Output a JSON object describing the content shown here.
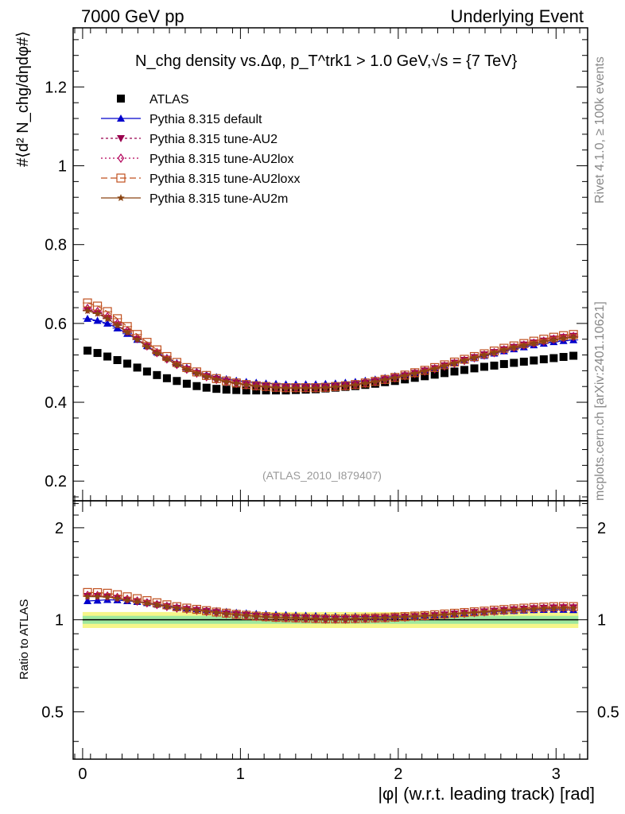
{
  "header": {
    "left": "7000 GeV pp",
    "right": "Underlying Event"
  },
  "side_labels": {
    "top": "Rivet 4.1.0, ≥ 100k events",
    "bottom": "mcplots.cern.ch [arXiv:2401.10621]"
  },
  "analysis_ref": "(ATLAS_2010_I879407)",
  "title": "N_chg density vs.Δφ, p_T^trk1 > 1.0 GeV,√s = {7 TeV}",
  "colors": {
    "atlas": "#000000",
    "default": "#0000cc",
    "au2": "#99004d",
    "au2lox": "#b30059",
    "au2loxx": "#c0501f",
    "au2m": "#8b4513"
  },
  "chart_data": [
    {
      "type": "scatter",
      "panel": "main",
      "title": "N_chg density vs.Δφ, p_T^trk1 > 1.0 GeV,√s = {7 TeV}",
      "ylabel": "#⟨d² N_chg/dηdφ#⟩",
      "xlabel": "",
      "xlim": [
        -0.06,
        3.2
      ],
      "ylim": [
        0.15,
        1.35
      ],
      "yticks": [
        "0.2",
        "0.4",
        "0.6",
        "0.8",
        "1",
        "1.2"
      ],
      "legend_position": "top-left",
      "x": [
        0.031,
        0.094,
        0.157,
        0.22,
        0.283,
        0.346,
        0.408,
        0.471,
        0.534,
        0.597,
        0.66,
        0.723,
        0.785,
        0.848,
        0.911,
        0.974,
        1.037,
        1.1,
        1.162,
        1.225,
        1.288,
        1.351,
        1.414,
        1.477,
        1.539,
        1.602,
        1.665,
        1.728,
        1.791,
        1.854,
        1.916,
        1.979,
        2.042,
        2.105,
        2.168,
        2.231,
        2.293,
        2.356,
        2.419,
        2.482,
        2.545,
        2.608,
        2.67,
        2.733,
        2.796,
        2.859,
        2.922,
        2.985,
        3.047,
        3.11
      ],
      "series": [
        {
          "name": "ATLAS",
          "color_key": "atlas",
          "marker": "square",
          "values": [
            0.531,
            0.525,
            0.516,
            0.507,
            0.498,
            0.488,
            0.478,
            0.469,
            0.461,
            0.454,
            0.447,
            0.441,
            0.437,
            0.434,
            0.432,
            0.431,
            0.43,
            0.43,
            0.43,
            0.43,
            0.43,
            0.431,
            0.432,
            0.433,
            0.435,
            0.437,
            0.439,
            0.441,
            0.444,
            0.447,
            0.451,
            0.454,
            0.458,
            0.462,
            0.466,
            0.47,
            0.474,
            0.478,
            0.482,
            0.486,
            0.49,
            0.493,
            0.497,
            0.5,
            0.503,
            0.506,
            0.509,
            0.512,
            0.515,
            0.518
          ]
        },
        {
          "name": "Pythia 8.315 default",
          "color_key": "default",
          "marker": "triangle-up",
          "values": [
            0.612,
            0.607,
            0.6,
            0.588,
            0.574,
            0.559,
            0.543,
            0.527,
            0.513,
            0.5,
            0.488,
            0.478,
            0.47,
            0.464,
            0.459,
            0.455,
            0.452,
            0.45,
            0.448,
            0.447,
            0.446,
            0.446,
            0.446,
            0.446,
            0.447,
            0.448,
            0.45,
            0.452,
            0.455,
            0.458,
            0.462,
            0.467,
            0.471,
            0.476,
            0.482,
            0.487,
            0.493,
            0.5,
            0.506,
            0.512,
            0.518,
            0.524,
            0.53,
            0.535,
            0.54,
            0.545,
            0.549,
            0.553,
            0.556,
            0.558
          ]
        },
        {
          "name": "Pythia 8.315 tune-AU2",
          "color_key": "au2",
          "marker": "triangle-down",
          "values": [
            0.634,
            0.627,
            0.614,
            0.597,
            0.578,
            0.56,
            0.542,
            0.525,
            0.51,
            0.496,
            0.484,
            0.474,
            0.466,
            0.459,
            0.453,
            0.449,
            0.445,
            0.442,
            0.44,
            0.438,
            0.437,
            0.437,
            0.437,
            0.437,
            0.438,
            0.44,
            0.442,
            0.445,
            0.449,
            0.453,
            0.458,
            0.463,
            0.468,
            0.474,
            0.48,
            0.486,
            0.493,
            0.5,
            0.507,
            0.514,
            0.521,
            0.527,
            0.534,
            0.54,
            0.546,
            0.551,
            0.556,
            0.561,
            0.565,
            0.568
          ]
        },
        {
          "name": "Pythia 8.315 tune-AU2lox",
          "color_key": "au2lox",
          "marker": "diamond-open",
          "values": [
            0.638,
            0.63,
            0.617,
            0.6,
            0.581,
            0.562,
            0.543,
            0.526,
            0.51,
            0.496,
            0.484,
            0.474,
            0.465,
            0.458,
            0.452,
            0.448,
            0.444,
            0.441,
            0.439,
            0.437,
            0.436,
            0.436,
            0.436,
            0.436,
            0.437,
            0.439,
            0.441,
            0.444,
            0.448,
            0.452,
            0.457,
            0.462,
            0.467,
            0.473,
            0.479,
            0.485,
            0.492,
            0.499,
            0.506,
            0.513,
            0.52,
            0.526,
            0.533,
            0.539,
            0.545,
            0.55,
            0.555,
            0.56,
            0.564,
            0.567
          ]
        },
        {
          "name": "Pythia 8.315 tune-AU2loxx",
          "color_key": "au2loxx",
          "marker": "square-open",
          "values": [
            0.652,
            0.644,
            0.63,
            0.612,
            0.592,
            0.572,
            0.552,
            0.533,
            0.516,
            0.501,
            0.488,
            0.477,
            0.468,
            0.46,
            0.454,
            0.449,
            0.445,
            0.442,
            0.44,
            0.438,
            0.437,
            0.437,
            0.437,
            0.437,
            0.438,
            0.44,
            0.442,
            0.445,
            0.449,
            0.453,
            0.458,
            0.463,
            0.469,
            0.475,
            0.481,
            0.488,
            0.495,
            0.502,
            0.509,
            0.516,
            0.523,
            0.53,
            0.537,
            0.543,
            0.549,
            0.555,
            0.56,
            0.565,
            0.569,
            0.572
          ]
        },
        {
          "name": "Pythia 8.315 tune-AU2m",
          "color_key": "au2m",
          "marker": "star",
          "values": [
            0.632,
            0.625,
            0.612,
            0.595,
            0.577,
            0.559,
            0.541,
            0.524,
            0.509,
            0.495,
            0.483,
            0.473,
            0.465,
            0.458,
            0.452,
            0.448,
            0.444,
            0.441,
            0.439,
            0.437,
            0.436,
            0.436,
            0.436,
            0.436,
            0.437,
            0.439,
            0.441,
            0.444,
            0.448,
            0.452,
            0.457,
            0.462,
            0.467,
            0.473,
            0.479,
            0.485,
            0.492,
            0.499,
            0.506,
            0.513,
            0.52,
            0.526,
            0.533,
            0.539,
            0.544,
            0.549,
            0.554,
            0.558,
            0.562,
            0.565
          ]
        }
      ]
    },
    {
      "type": "scatter",
      "panel": "ratio",
      "ylabel": "Ratio to ATLAS",
      "xlabel": "|φ| (w.r.t. leading track) [rad]",
      "xlim": [
        -0.06,
        3.2
      ],
      "ylim": [
        0.35,
        2.45
      ],
      "yscale": "log",
      "yticks": [
        "0.5",
        "1",
        "2"
      ],
      "xticks": [
        "0",
        "1",
        "2",
        "3"
      ],
      "band_inner": 0.03,
      "band_outer": 0.06
    }
  ]
}
